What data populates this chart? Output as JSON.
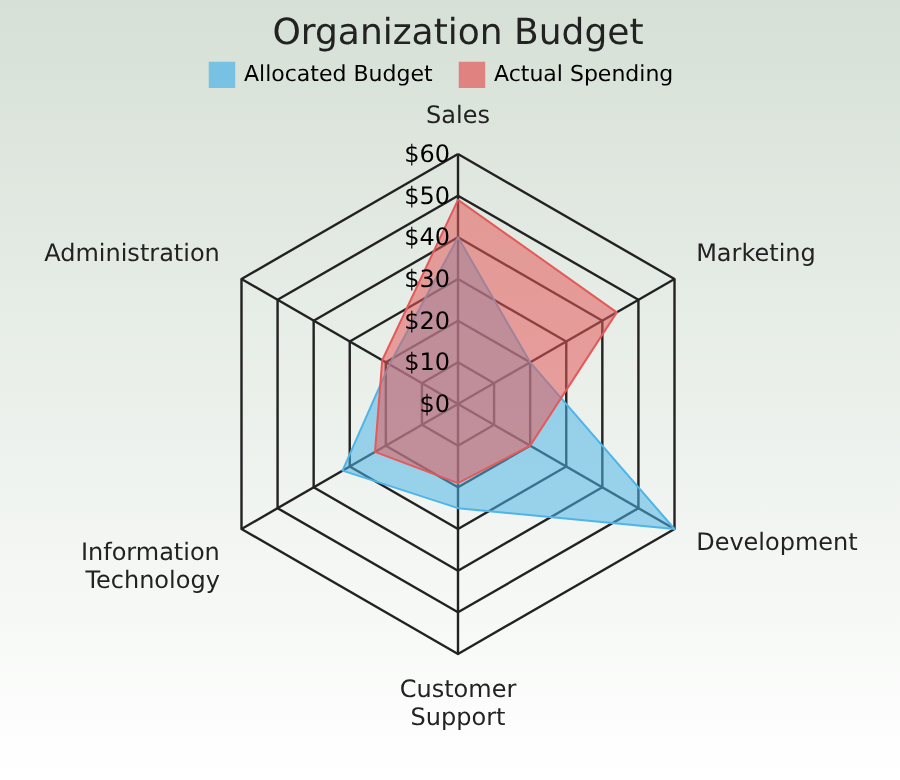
{
  "chart_data": {
    "type": "radar",
    "title": "Organization Budget",
    "categories": [
      "Sales",
      "Marketing",
      "Development",
      "Customer Support",
      "Information Technology",
      "Administration"
    ],
    "series": [
      {
        "name": "Allocated Budget",
        "color": "#4fb4e6",
        "values": [
          40,
          20,
          60,
          25,
          32,
          19
        ]
      },
      {
        "name": "Actual Spending",
        "color": "#e35a5a",
        "values": [
          49,
          44,
          20,
          19,
          23,
          21
        ]
      }
    ],
    "ylim": [
      0,
      60
    ],
    "yticks": [
      {
        "value": 0,
        "label": "$0"
      },
      {
        "value": 10,
        "label": "$10"
      },
      {
        "value": 20,
        "label": "$20"
      },
      {
        "value": 30,
        "label": "$30"
      },
      {
        "value": 40,
        "label": "$40"
      },
      {
        "value": 50,
        "label": "$50"
      },
      {
        "value": 60,
        "label": "$60"
      }
    ],
    "legend": "top"
  }
}
